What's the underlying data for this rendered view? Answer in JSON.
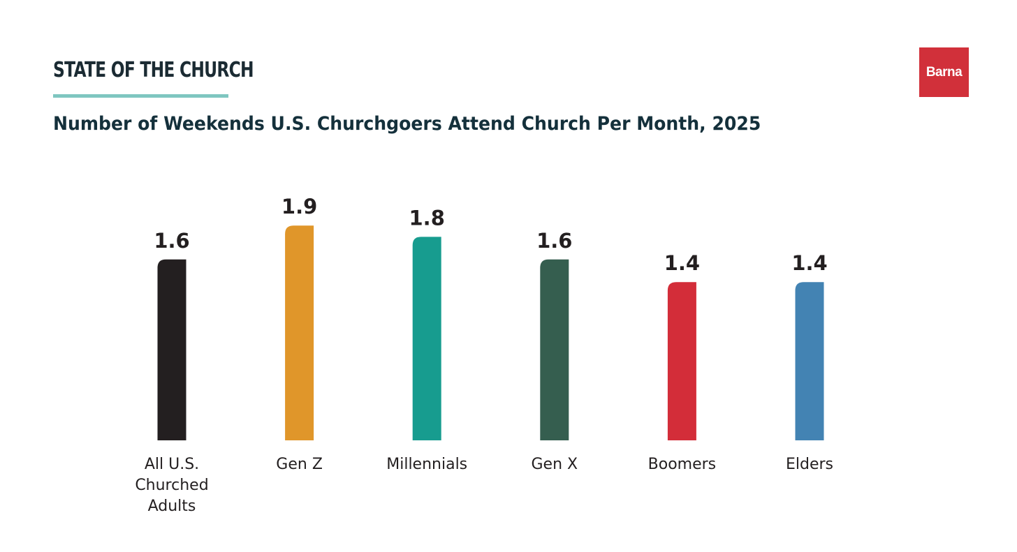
{
  "header": {
    "tag": "STATE OF THE CHURCH",
    "logo_text": "Barna"
  },
  "colors": {
    "accent_rule": "#7fc6c0",
    "logo_bg": "#d1303a",
    "title": "#14303b"
  },
  "chart_data": {
    "type": "bar",
    "title": "Number of Weekends U.S. Churchgoers Attend Church Per Month, 2025",
    "xlabel": "",
    "ylabel": "",
    "ylim": [
      0,
      1.9
    ],
    "grid": false,
    "categories": [
      [
        "All U.S.",
        "Churched",
        "Adults"
      ],
      [
        "Gen Z"
      ],
      [
        "Millennials"
      ],
      [
        "Gen X"
      ],
      [
        "Boomers"
      ],
      [
        "Elders"
      ]
    ],
    "values": [
      1.6,
      1.9,
      1.8,
      1.6,
      1.4,
      1.4
    ],
    "value_labels": [
      "1.6",
      "1.9",
      "1.8",
      "1.6",
      "1.4",
      "1.4"
    ],
    "bar_colors": [
      "#231f20",
      "#e0962a",
      "#179c8f",
      "#355e4f",
      "#d32d39",
      "#4383b3"
    ]
  }
}
